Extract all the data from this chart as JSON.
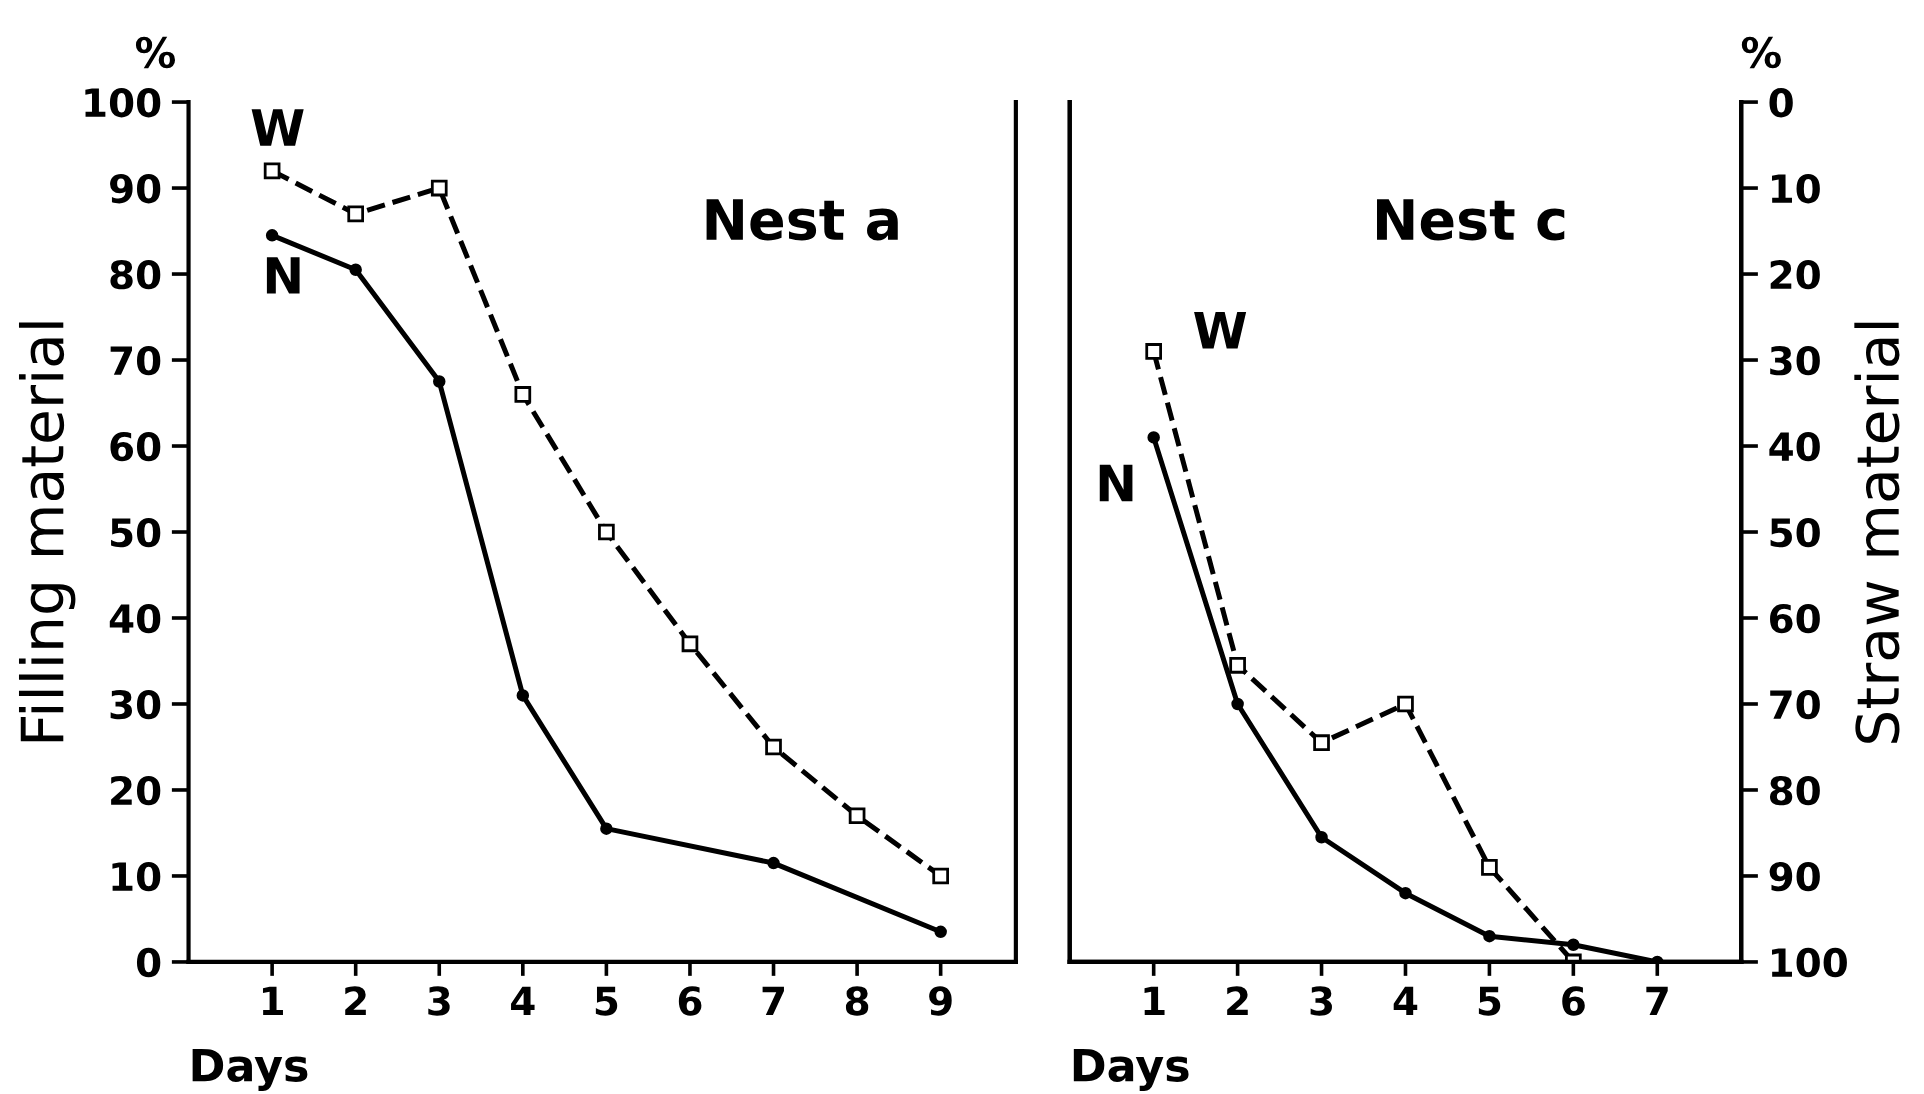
{
  "chart_data": [
    {
      "type": "line",
      "title": "Nest a",
      "xlabel": "Days",
      "ylabel": "Filling material",
      "annotations": [
        "%"
      ],
      "xlim": [
        0,
        9.9
      ],
      "xticks": [
        1,
        2,
        3,
        4,
        5,
        6,
        7,
        8,
        9
      ],
      "ylim": [
        0,
        100
      ],
      "yticks": [
        0,
        10,
        20,
        30,
        40,
        50,
        60,
        70,
        80,
        90,
        100
      ],
      "grid": false,
      "legend": false,
      "series": [
        {
          "name": "W",
          "color": "#000000",
          "marker": "square",
          "line_style": "dashed",
          "x": [
            1,
            2,
            3,
            4,
            5,
            6,
            7,
            8,
            9
          ],
          "values": [
            92,
            87,
            90,
            66,
            50,
            37,
            25,
            17,
            10
          ]
        },
        {
          "name": "N",
          "color": "#000000",
          "marker": "circle",
          "line_style": "solid",
          "x": [
            1,
            2,
            3,
            4,
            5,
            7,
            9
          ],
          "values": [
            84.5,
            80.5,
            67.5,
            31,
            15.5,
            11.5,
            3.5
          ]
        }
      ]
    },
    {
      "type": "line",
      "title": "Nest c",
      "xlabel": "Days",
      "y2label": "Straw material",
      "annotations": [
        "%"
      ],
      "xlim": [
        0,
        8
      ],
      "xticks": [
        1,
        2,
        3,
        4,
        5,
        6,
        7
      ],
      "y2lim": [
        100,
        0
      ],
      "y2ticks": [
        0,
        10,
        20,
        30,
        40,
        50,
        60,
        70,
        80,
        90,
        100
      ],
      "tick_labels": [
        "x",
        "y2"
      ],
      "grid": false,
      "legend": false,
      "series": [
        {
          "name": "W",
          "color": "#000000",
          "marker": "square",
          "line_style": "dashed",
          "axis": "y2",
          "x": [
            1,
            2,
            3,
            4,
            5,
            6
          ],
          "values": [
            29,
            65.5,
            74.5,
            70,
            89,
            100
          ]
        },
        {
          "name": "N",
          "color": "#000000",
          "marker": "circle",
          "line_style": "solid",
          "axis": "y2",
          "x": [
            1,
            2,
            3,
            4,
            5,
            6,
            7
          ],
          "values": [
            39,
            70,
            85.5,
            92,
            97,
            98,
            100
          ]
        }
      ]
    }
  ]
}
